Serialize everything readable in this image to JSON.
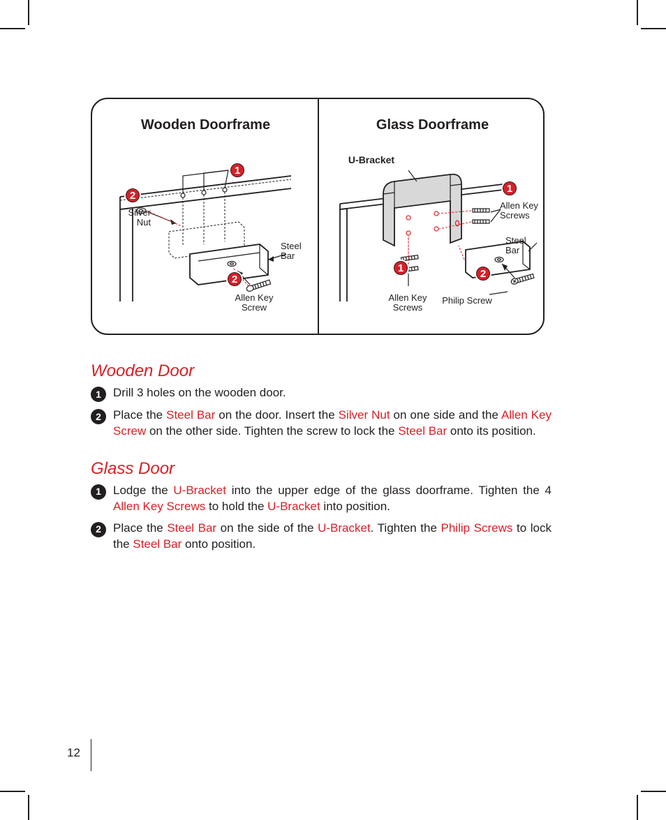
{
  "colors": {
    "accent": "#d91f26",
    "ink": "#231f20",
    "bg": "#ffffff",
    "grey": "#d8d8d8"
  },
  "page_number": "12",
  "diagram": {
    "left_title": "Wooden Doorframe",
    "right_title": "Glass Doorframe",
    "labels": {
      "silver_nut": "Silver\nNut",
      "steel_bar_l": "Steel\nBar",
      "allen_key_screw": "Allen Key\nScrew",
      "u_bracket": "U-Bracket",
      "allen_key_screws_r": "Allen Key\nScrews",
      "allen_key_screws_b": "Allen Key\nScrews",
      "steel_bar_r": "Steel\nBar",
      "philip_screw": "Philip Screw"
    }
  },
  "wooden": {
    "title": "Wooden Door",
    "steps": [
      {
        "n": "1",
        "parts": [
          {
            "t": "Drill 3 holes on the wooden door."
          }
        ]
      },
      {
        "n": "2",
        "parts": [
          {
            "t": "Place the "
          },
          {
            "t": "Steel Bar",
            "hl": true
          },
          {
            "t": " on the door. Insert the "
          },
          {
            "t": "Silver Nut",
            "hl": true
          },
          {
            "t": " on one side and the "
          },
          {
            "t": "Allen Key Screw",
            "hl": true
          },
          {
            "t": " on the other side. Tighten the screw to lock the "
          },
          {
            "t": "Steel Bar",
            "hl": true
          },
          {
            "t": " onto its position."
          }
        ]
      }
    ]
  },
  "glass": {
    "title": "Glass Door",
    "steps": [
      {
        "n": "1",
        "parts": [
          {
            "t": "Lodge the "
          },
          {
            "t": "U-Bracket",
            "hl": true
          },
          {
            "t": " into the upper edge of the glass doorframe. Tighten the 4 "
          },
          {
            "t": "Allen Key Screws",
            "hl": true
          },
          {
            "t": " to hold the "
          },
          {
            "t": "U-Bracket",
            "hl": true
          },
          {
            "t": " into position."
          }
        ]
      },
      {
        "n": "2",
        "parts": [
          {
            "t": "Place the "
          },
          {
            "t": "Steel Bar",
            "hl": true
          },
          {
            "t": " on the side of the "
          },
          {
            "t": "U-Bracket",
            "hl": true
          },
          {
            "t": ". Tighten the "
          },
          {
            "t": "Philip Screws",
            "hl": true
          },
          {
            "t": " to lock the "
          },
          {
            "t": "Steel Bar",
            "hl": true
          },
          {
            "t": " onto position."
          }
        ]
      }
    ]
  }
}
